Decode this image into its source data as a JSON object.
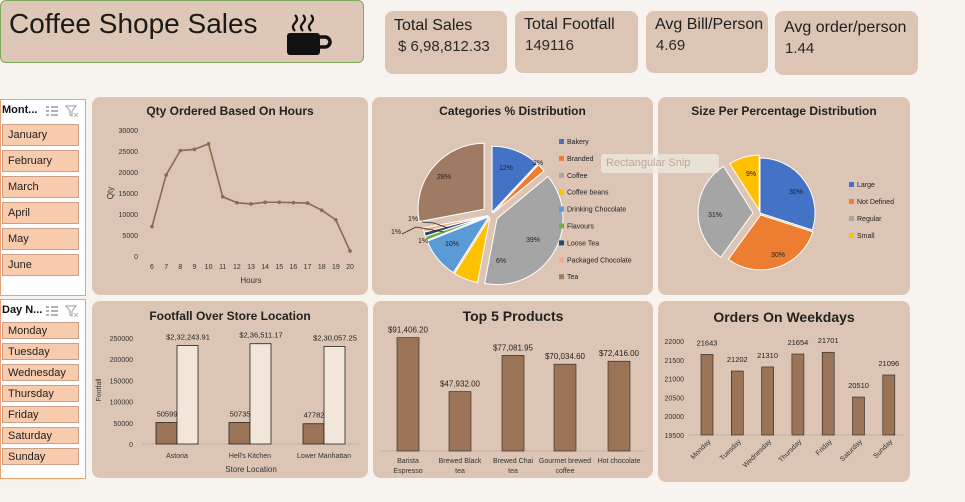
{
  "dashboard": {
    "title": "Coffee Shope Sales"
  },
  "kpis": [
    {
      "title": "Total Sales",
      "value": "$ 6,98,812.33"
    },
    {
      "title": "Total Footfall",
      "value": "149116"
    },
    {
      "title": "Avg Bill/Person",
      "value": "4.69"
    },
    {
      "title": "Avg order/person",
      "value": "1.44"
    }
  ],
  "month_slicer": {
    "title": "Mont...",
    "items": [
      "January",
      "February",
      "March",
      "April",
      "May",
      "June"
    ]
  },
  "day_slicer": {
    "title": "Day N...",
    "items": [
      "Monday",
      "Tuesday",
      "Wednesday",
      "Thursday",
      "Friday",
      "Saturday",
      "Sunday"
    ]
  },
  "snip_overlay": {
    "text": "Rectangular Snip"
  },
  "colors": {
    "bar_brown": "#9b7458",
    "bar_cream": "#f2e6da",
    "card_bg": "#dcc5b4"
  },
  "chart_data": [
    {
      "type": "line",
      "title": "Qty Ordered Based On Hours",
      "xlabel": "Hours",
      "ylabel": "Qty",
      "x": [
        6,
        7,
        8,
        9,
        10,
        11,
        12,
        13,
        14,
        15,
        16,
        17,
        18,
        19,
        20
      ],
      "y_ticks": [
        "0",
        "5000",
        "10000",
        "15000",
        "20000",
        "25000",
        "30000"
      ],
      "ylim": [
        0,
        30000
      ],
      "series": [
        {
          "values": [
            7000,
            19300,
            25100,
            25400,
            26700,
            14100,
            12700,
            12400,
            12800,
            12800,
            12700,
            12600,
            10900,
            8600,
            1200
          ]
        }
      ]
    },
    {
      "type": "pie",
      "title": "Categories % Distribution",
      "legend": [
        "Bakery",
        "Branded",
        "Coffee",
        "Coffee beans",
        "Drinking Chocolate",
        "Flavours",
        "Loose Tea",
        "Packaged Chocolate",
        "Tea"
      ],
      "colors": [
        "#4472c4",
        "#ed7d31",
        "#a5a5a5",
        "#ffc000",
        "#5b9bd5",
        "#70ad47",
        "#264478",
        "#f4b183",
        "#9e7b62"
      ],
      "labels": [
        "12%",
        "2%",
        "39%",
        "6%",
        "10%",
        "1%",
        "1%",
        "1%",
        "28%"
      ],
      "values": [
        12,
        2,
        39,
        6,
        10,
        1,
        1,
        1,
        28
      ]
    },
    {
      "type": "pie",
      "title": "Size Per Percentage Distribution",
      "legend": [
        "Large",
        "Not Defined",
        "Regular",
        "Small"
      ],
      "colors": [
        "#4472c4",
        "#ed7d31",
        "#a5a5a5",
        "#ffc000"
      ],
      "labels": [
        "30%",
        "30%",
        "31%",
        "9%"
      ],
      "values": [
        30,
        30,
        31,
        9
      ]
    },
    {
      "type": "bar",
      "title": "Footfall Over Store Location",
      "xlabel": "Store Location",
      "ylabel": "Footfall",
      "categories": [
        "Astoria",
        "Hell's Kitchen",
        "Lower Manhattan"
      ],
      "y_ticks": [
        "0",
        "50000",
        "100000",
        "150000",
        "200000",
        "250000"
      ],
      "ylim": [
        0,
        250000
      ],
      "series": [
        {
          "values": [
            50599,
            50735,
            47782
          ],
          "labels": [
            "50599",
            "50735",
            "47782"
          ]
        },
        {
          "values": [
            232243.91,
            236511.17,
            230057.25
          ],
          "labels": [
            "$2,32,243.91",
            "$2,36,511.17",
            "$2,30,057.25"
          ]
        }
      ]
    },
    {
      "type": "bar",
      "title": "Top 5 Products",
      "categories": [
        "Barista Espresso",
        "Brewed Black tea",
        "Brewed Chai tea",
        "Gourmet brewed coffee",
        "Hot chocolate"
      ],
      "values": [
        91406.2,
        47932.0,
        77081.95,
        70034.6,
        72416.0
      ],
      "labels": [
        "$91,406.20",
        "$47,932.00",
        "$77,081.95",
        "$70,034.60",
        "$72,416.00"
      ]
    },
    {
      "type": "bar",
      "title": "Orders On Weekdays",
      "categories": [
        "Monday",
        "Tuesday",
        "Wednesday",
        "Thursday",
        "Friday",
        "Saturday",
        "Sunday"
      ],
      "values": [
        21643,
        21202,
        21310,
        21654,
        21701,
        20510,
        21096
      ],
      "labels": [
        "21643",
        "21202",
        "21310",
        "21654",
        "21701",
        "20510",
        "21096"
      ],
      "y_ticks": [
        "19500",
        "20000",
        "20500",
        "21000",
        "21500",
        "22000"
      ],
      "ylim": [
        19500,
        22000
      ]
    }
  ]
}
